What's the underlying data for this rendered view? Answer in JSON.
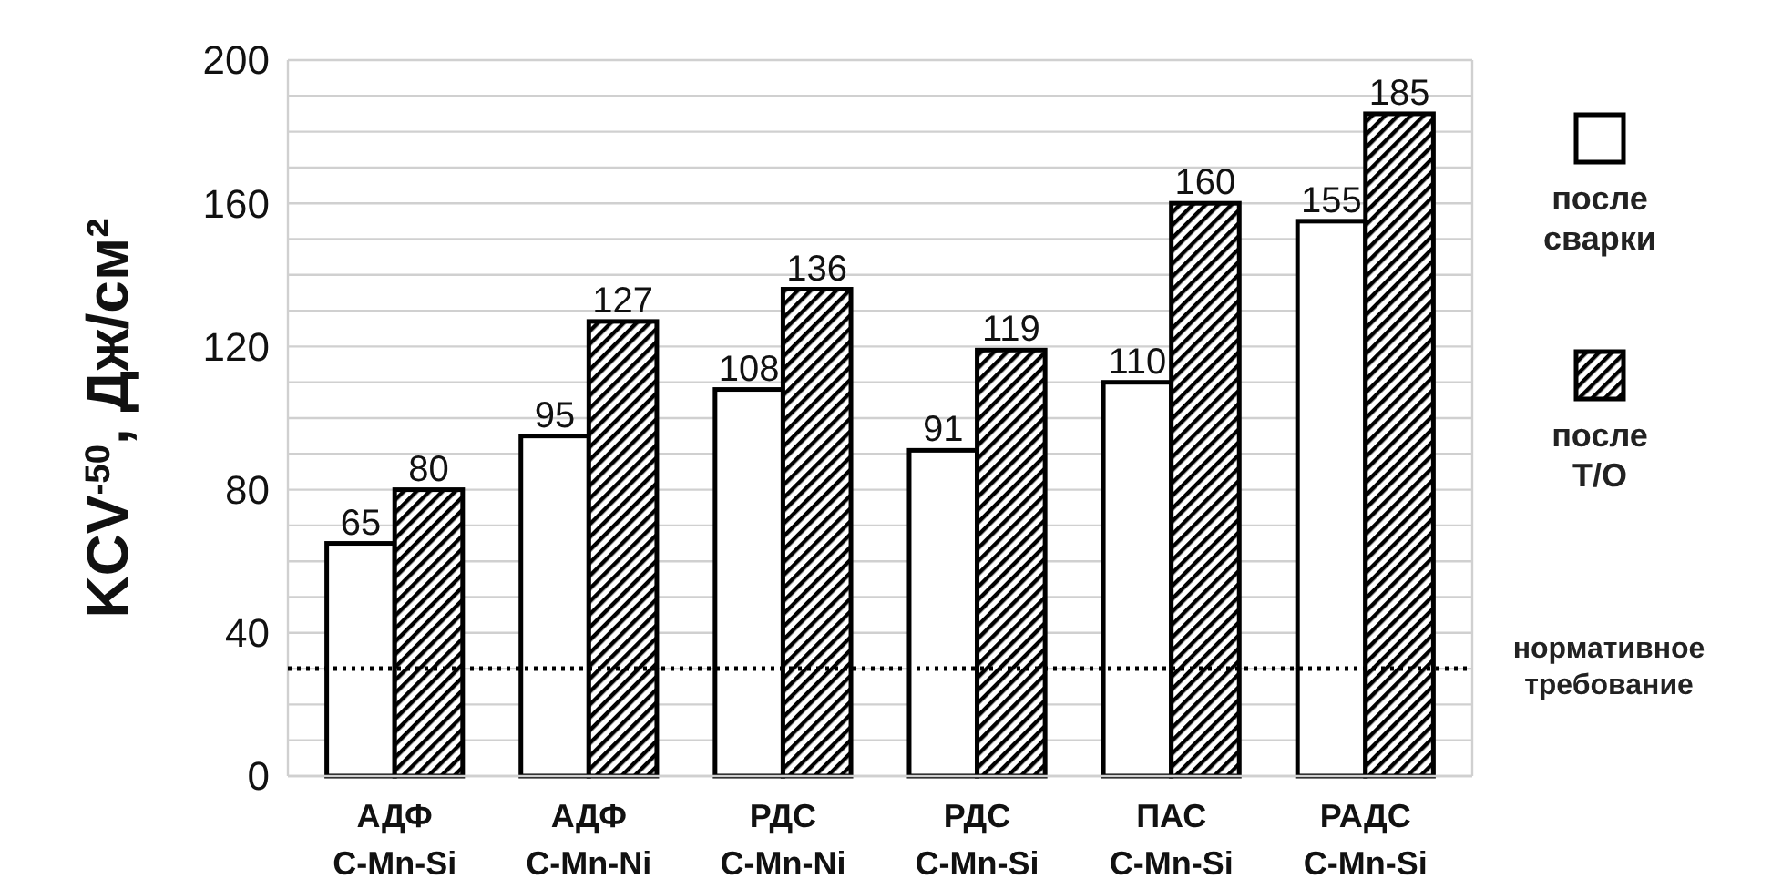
{
  "chart_data": {
    "type": "bar",
    "ylabel": "KCV$^{-50}$, Дж/см²",
    "categories": [
      "АДФ\nC-Mn-Si",
      "АДФ\nC-Mn-Ni",
      "РДС\nC-Mn-Ni",
      "РДС\nC-Mn-Si",
      "ПАС\nC-Mn-Si",
      "РАДС\nC-Mn-Si"
    ],
    "series": [
      {
        "name": "после\nсварки",
        "color": "#ffffff",
        "values": [
          65,
          95,
          108,
          91,
          110,
          155
        ]
      },
      {
        "name": "после\nТ/О",
        "color": "#000000",
        "values": [
          80,
          127,
          136,
          119,
          160,
          185
        ]
      }
    ],
    "ylim": [
      0,
      200
    ],
    "yticks": [
      0,
      {
        "value": 10,
        "label": null
      },
      {
        "value": 20,
        "label": null
      },
      {
        "value": 30,
        "label": null
      },
      40,
      {
        "value": 50,
        "label": null
      },
      {
        "value": 60,
        "label": null
      },
      {
        "value": 70,
        "label": null
      },
      80,
      {
        "value": 90,
        "label": null
      },
      {
        "value": 100,
        "label": null
      },
      {
        "value": 110,
        "label": null
      },
      120,
      {
        "value": 130,
        "label": null
      },
      {
        "value": 140,
        "label": null
      },
      {
        "value": 150,
        "label": null
      },
      160,
      {
        "value": 170,
        "label": null
      },
      {
        "value": 180,
        "label": null
      },
      {
        "value": 190,
        "label": null
      },
      200
    ],
    "grid": "y",
    "data_labels": true,
    "legend": "right",
    "ref_lines": [
      {
        "axis": "y",
        "value": 30,
        "label": "нормативное\nтребование",
        "color": "#000000",
        "line_style": "dotted"
      }
    ]
  }
}
